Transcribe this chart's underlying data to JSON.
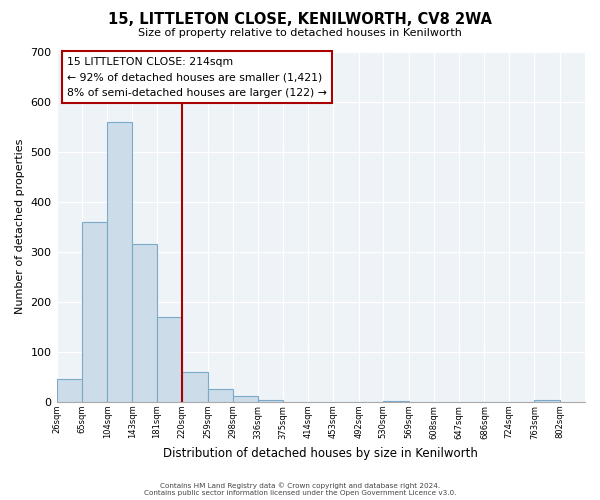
{
  "title": "15, LITTLETON CLOSE, KENILWORTH, CV8 2WA",
  "subtitle": "Size of property relative to detached houses in Kenilworth",
  "xlabel": "Distribution of detached houses by size in Kenilworth",
  "ylabel": "Number of detached properties",
  "bar_edges": [
    26,
    65,
    104,
    143,
    181,
    220,
    259,
    298,
    336,
    375,
    414,
    453,
    492,
    530,
    569,
    608,
    647,
    686,
    724,
    763,
    802
  ],
  "bar_heights": [
    45,
    360,
    560,
    315,
    170,
    60,
    25,
    12,
    4,
    0,
    0,
    0,
    0,
    2,
    0,
    0,
    0,
    0,
    0,
    4
  ],
  "bar_color": "#ccdce8",
  "bar_edge_color": "#7aaac8",
  "vline_x": 220,
  "vline_color": "#aa0000",
  "ylim": [
    0,
    700
  ],
  "yticks": [
    0,
    100,
    200,
    300,
    400,
    500,
    600,
    700
  ],
  "annotation_title": "15 LITTLETON CLOSE: 214sqm",
  "annotation_line1": "← 92% of detached houses are smaller (1,421)",
  "annotation_line2": "8% of semi-detached houses are larger (122) →",
  "footer_line1": "Contains HM Land Registry data © Crown copyright and database right 2024.",
  "footer_line2": "Contains public sector information licensed under the Open Government Licence v3.0.",
  "tick_labels": [
    "26sqm",
    "65sqm",
    "104sqm",
    "143sqm",
    "181sqm",
    "220sqm",
    "259sqm",
    "298sqm",
    "336sqm",
    "375sqm",
    "414sqm",
    "453sqm",
    "492sqm",
    "530sqm",
    "569sqm",
    "608sqm",
    "647sqm",
    "686sqm",
    "724sqm",
    "763sqm",
    "802sqm"
  ],
  "plot_bg_color": "#eef3f8",
  "grid_color": "#ffffff",
  "fig_bg_color": "#ffffff"
}
